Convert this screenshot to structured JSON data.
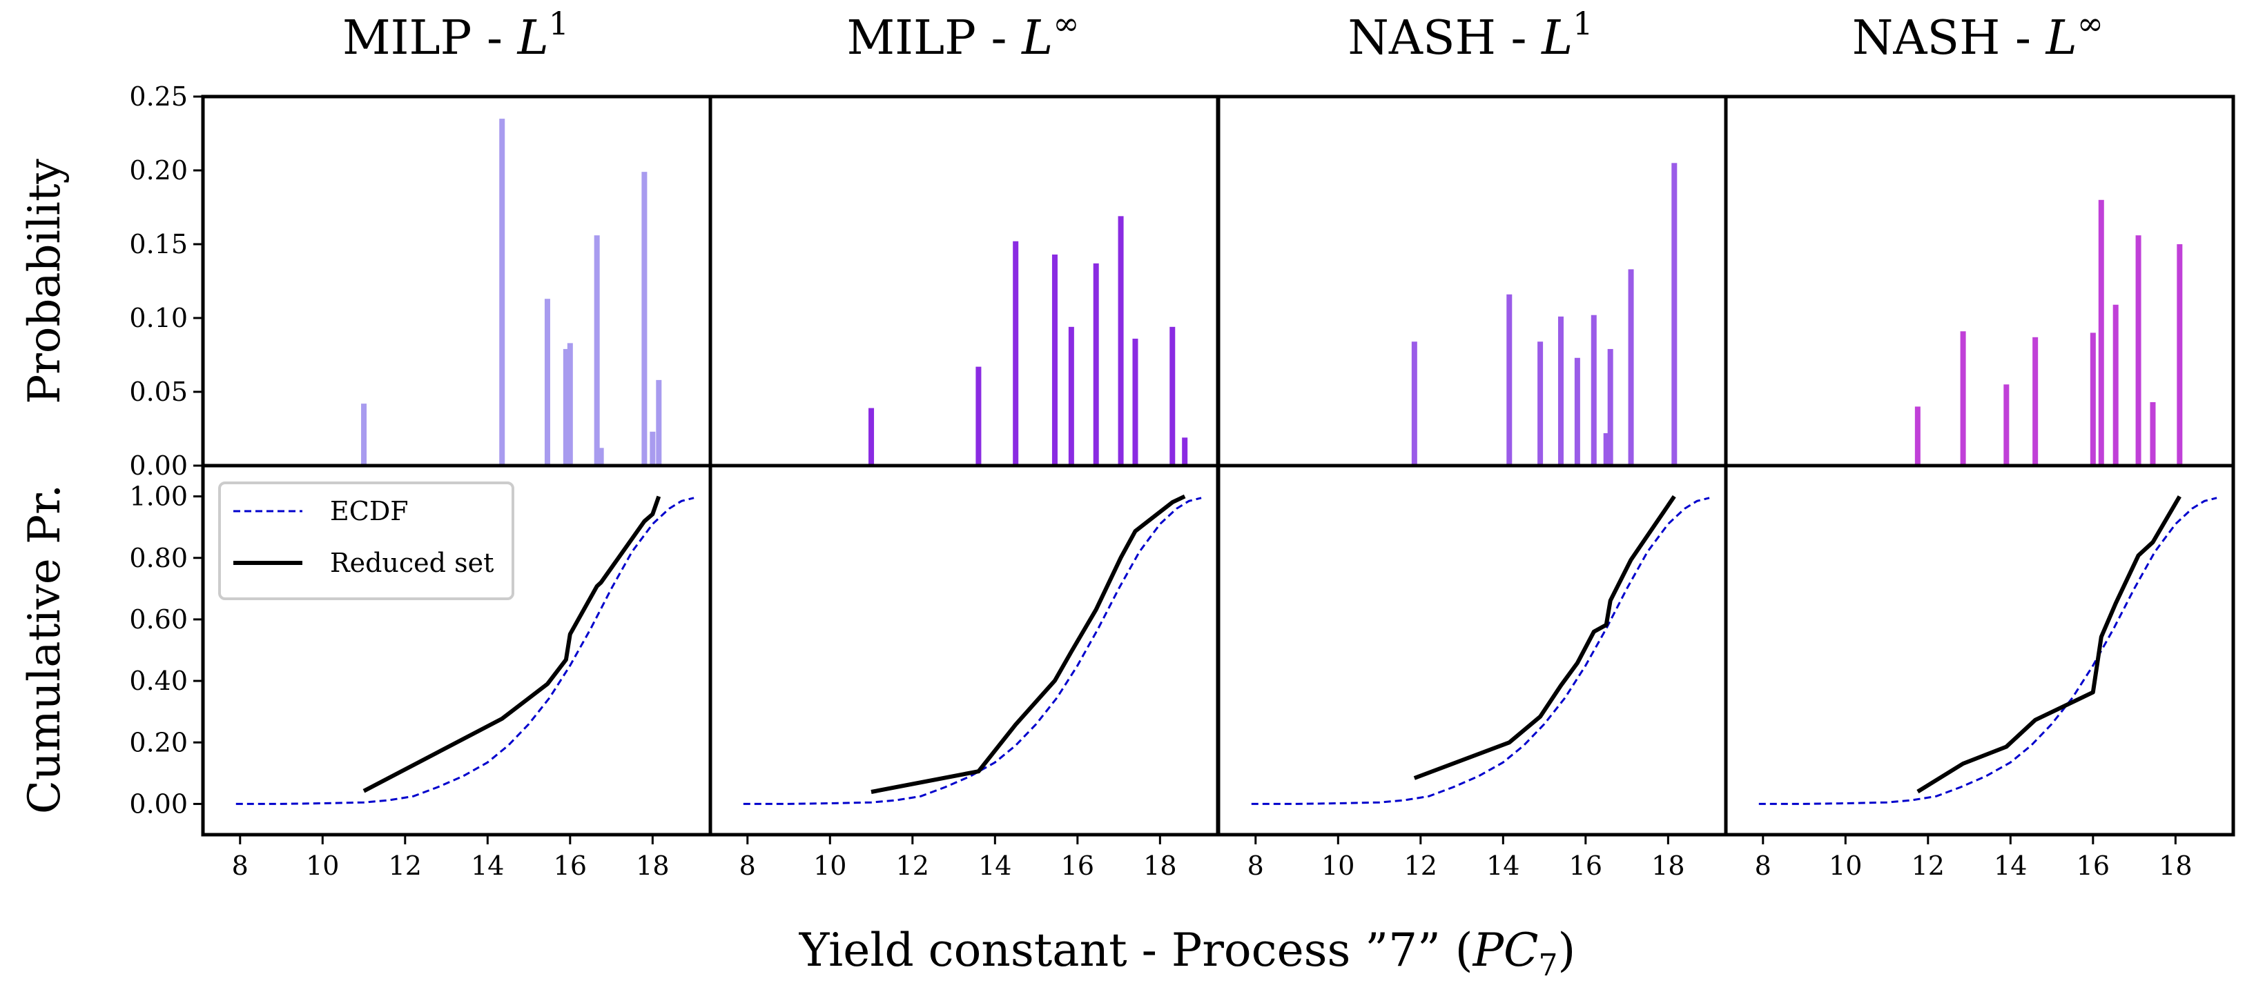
{
  "figure": {
    "xlabel_main": "Yield constant - Process ”7” (",
    "xlabel_sym": "PC",
    "xlabel_sub": "7",
    "xlabel_close": ")",
    "ylabel_top": "Probability",
    "ylabel_bottom": "Cumulative Pr."
  },
  "panels": [
    {
      "title_text": "MILP - ",
      "title_sym": "L",
      "title_sup": "1"
    },
    {
      "title_text": "MILP - ",
      "title_sym": "L",
      "title_sup": "∞"
    },
    {
      "title_text": "NASH - ",
      "title_sym": "L",
      "title_sup": "1"
    },
    {
      "title_text": "NASH - ",
      "title_sym": "L",
      "title_sup": "∞"
    }
  ],
  "legend": {
    "ecdf_label": "ECDF",
    "reduced_label": "Reduced set"
  },
  "colors": {
    "bar_colors": [
      "#a89bef",
      "#8a2be2",
      "#9a5be8",
      "#c040d8"
    ],
    "ecdf": "#0000cc",
    "reduced": "#000000"
  },
  "chart_data": {
    "type": "bar",
    "title": "",
    "xlabel": "Yield constant - Process ”7” (PC7)",
    "x_range": [
      7.1,
      19.4
    ],
    "x_ticks": [
      8,
      10,
      12,
      14,
      16,
      18
    ],
    "x_tick_labels": [
      "8",
      "10",
      "12",
      "14",
      "16",
      "18"
    ],
    "prob_ylim": [
      0,
      0.25
    ],
    "prob_ticks": [
      0.0,
      0.05,
      0.1,
      0.15,
      0.2,
      0.25
    ],
    "prob_tick_labels": [
      "0.00",
      "0.05",
      "0.10",
      "0.15",
      "0.20",
      "0.25"
    ],
    "cdf_ylim": [
      -0.1,
      1.1
    ],
    "cdf_ticks": [
      0.0,
      0.2,
      0.4,
      0.6,
      0.8,
      1.0
    ],
    "cdf_tick_labels": [
      "0.00",
      "0.20",
      "0.40",
      "0.60",
      "0.80",
      "1.00"
    ],
    "ecdf": {
      "x": [
        7.9,
        9.0,
        10.0,
        11.0,
        11.6,
        12.2,
        12.8,
        13.4,
        14.0,
        14.5,
        15.0,
        15.5,
        16.0,
        16.5,
        17.0,
        17.5,
        18.0,
        18.4,
        18.7,
        19.0
      ],
      "y": [
        0.0,
        0.0,
        0.002,
        0.005,
        0.012,
        0.025,
        0.055,
        0.09,
        0.135,
        0.19,
        0.26,
        0.345,
        0.45,
        0.57,
        0.7,
        0.82,
        0.91,
        0.96,
        0.985,
        0.995
      ]
    },
    "series": [
      {
        "name": "MILP - L1",
        "bars": {
          "x": [
            11.0,
            14.35,
            15.45,
            15.9,
            16.0,
            16.65,
            16.75,
            17.8,
            18.0,
            18.15
          ],
          "p": [
            0.042,
            0.235,
            0.113,
            0.079,
            0.083,
            0.156,
            0.012,
            0.199,
            0.023,
            0.058
          ]
        },
        "reduced_cdf": {
          "x": [
            11.0,
            14.35,
            15.45,
            15.9,
            16.0,
            16.65,
            16.75,
            17.8,
            18.0,
            18.15
          ],
          "y": [
            0.042,
            0.277,
            0.39,
            0.469,
            0.552,
            0.708,
            0.72,
            0.919,
            0.942,
            1.0
          ]
        }
      },
      {
        "name": "MILP - L∞",
        "bars": {
          "x": [
            11.0,
            13.6,
            14.5,
            15.45,
            15.85,
            16.45,
            17.05,
            17.4,
            18.3,
            18.6
          ],
          "p": [
            0.039,
            0.067,
            0.152,
            0.143,
            0.094,
            0.137,
            0.169,
            0.086,
            0.094,
            0.019
          ]
        },
        "reduced_cdf": {
          "x": [
            11.0,
            13.6,
            14.5,
            15.45,
            15.85,
            16.45,
            17.05,
            17.4,
            18.3,
            18.6
          ],
          "y": [
            0.039,
            0.106,
            0.258,
            0.401,
            0.495,
            0.632,
            0.801,
            0.887,
            0.981,
            1.0
          ]
        }
      },
      {
        "name": "NASH - L1",
        "bars": {
          "x": [
            11.85,
            14.15,
            14.9,
            15.4,
            15.8,
            16.2,
            16.5,
            16.6,
            17.1,
            18.15
          ],
          "p": [
            0.084,
            0.116,
            0.084,
            0.101,
            0.073,
            0.102,
            0.022,
            0.079,
            0.133,
            0.205
          ]
        },
        "reduced_cdf": {
          "x": [
            11.85,
            14.15,
            14.9,
            15.4,
            15.8,
            16.2,
            16.5,
            16.6,
            17.1,
            18.15
          ],
          "y": [
            0.084,
            0.2,
            0.284,
            0.385,
            0.458,
            0.56,
            0.582,
            0.661,
            0.794,
            1.0
          ]
        }
      },
      {
        "name": "NASH - L∞",
        "bars": {
          "x": [
            11.75,
            12.85,
            13.9,
            14.6,
            16.0,
            16.2,
            16.55,
            17.1,
            17.45,
            18.1
          ],
          "p": [
            0.04,
            0.091,
            0.055,
            0.087,
            0.09,
            0.18,
            0.109,
            0.156,
            0.043,
            0.15
          ]
        },
        "reduced_cdf": {
          "x": [
            11.75,
            12.85,
            13.9,
            14.6,
            16.0,
            16.2,
            16.55,
            17.1,
            17.45,
            18.1
          ],
          "y": [
            0.04,
            0.131,
            0.186,
            0.273,
            0.363,
            0.543,
            0.652,
            0.808,
            0.851,
            1.0
          ]
        }
      }
    ]
  }
}
